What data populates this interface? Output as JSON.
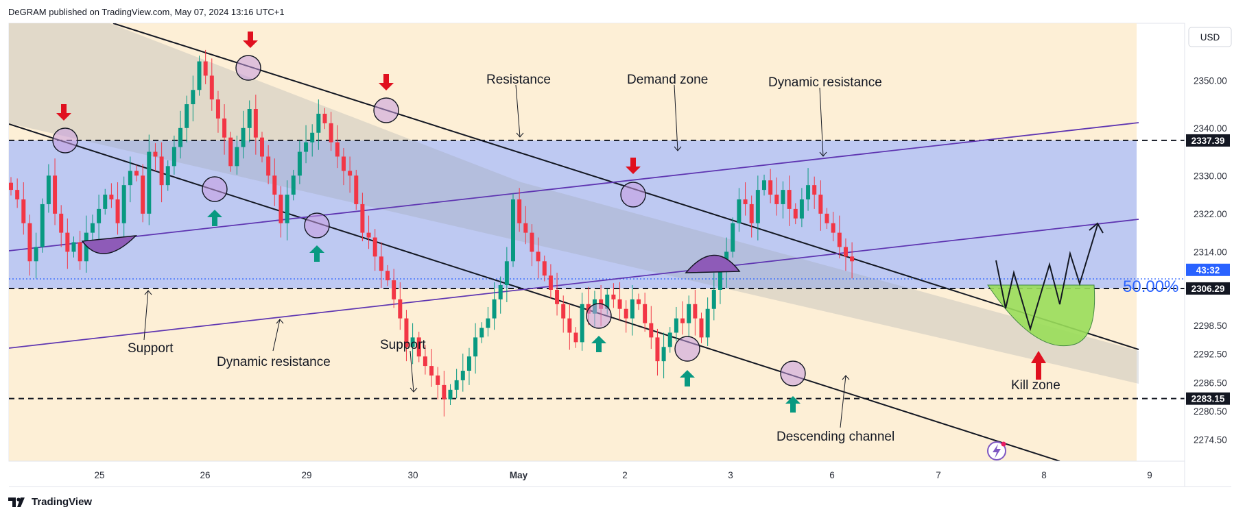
{
  "header": {
    "text": "DeGRAM published on TradingView.com, May 07, 2024 13:16 UTC+1"
  },
  "footer": {
    "brand": "TradingView"
  },
  "chart_data": {
    "type": "candlestick",
    "currency": "USD",
    "ylim": [
      2270,
      2362
    ],
    "y_ticks": [
      2350.0,
      2340.0,
      2330.0,
      2322.0,
      2314.0,
      2298.5,
      2292.5,
      2286.5,
      2280.5,
      2274.5
    ],
    "x_ticks": [
      "25",
      "26",
      "29",
      "30",
      "May",
      "2",
      "3",
      "6",
      "7",
      "8",
      "9"
    ],
    "price_labels": [
      {
        "value": 2337.39,
        "text": "2337.39",
        "color": "#131722"
      },
      {
        "value": 2306.29,
        "text": "2306.29",
        "color": "#131722"
      },
      {
        "value": 2283.15,
        "text": "2283.15",
        "color": "#131722"
      },
      {
        "value": 2310.2,
        "text": "43:32",
        "color": "#2962ff"
      }
    ],
    "levels": {
      "upper": 2337.39,
      "mid": 2306.29,
      "lower": 2283.15,
      "current": 2308.3
    },
    "fib_label": "50.00%",
    "annotations": {
      "resistance": "Resistance",
      "demand_zone": "Demand zone",
      "dynamic_resistance_top": "Dynamic resistance",
      "support_left": "Support",
      "dynamic_resistance_bottom": "Dynamic resistance",
      "support_mid": "Support",
      "kill_zone": "Kill zone",
      "descending_channel": "Descending channel"
    },
    "closes": [
      2327,
      2325,
      2320,
      2312,
      2315,
      2324,
      2330,
      2322,
      2318,
      2314,
      2316,
      2312,
      2318,
      2320,
      2323,
      2326,
      2325,
      2320,
      2328,
      2331,
      2330,
      2322,
      2335,
      2334,
      2328,
      2332,
      2336,
      2340,
      2345,
      2348,
      2354,
      2351,
      2346,
      2342,
      2338,
      2332,
      2336,
      2340,
      2344,
      2338,
      2334,
      2330,
      2326,
      2320,
      2326,
      2330,
      2335,
      2337,
      2339,
      2343,
      2341,
      2337,
      2334,
      2331,
      2330,
      2324,
      2318,
      2317,
      2313,
      2310,
      2308,
      2304,
      2300,
      2294,
      2296,
      2292,
      2290,
      2288,
      2286,
      2283,
      2285,
      2287,
      2289,
      2292,
      2296,
      2298,
      2300,
      2304,
      2307,
      2312,
      2325,
      2320,
      2318,
      2314,
      2312,
      2309,
      2306,
      2303,
      2300,
      2297,
      2295,
      2303,
      2301,
      2304,
      2302,
      2305,
      2304,
      2302,
      2300,
      2304,
      2303,
      2299,
      2296,
      2291,
      2294,
      2297,
      2300,
      2299,
      2303,
      2300,
      2296,
      2302,
      2306,
      2310,
      2314,
      2320,
      2325,
      2324,
      2320,
      2327,
      2329,
      2326,
      2324,
      2327,
      2323,
      2321,
      2325,
      2328,
      2326,
      2322,
      2320,
      2318,
      2315,
      2313,
      2312
    ]
  }
}
